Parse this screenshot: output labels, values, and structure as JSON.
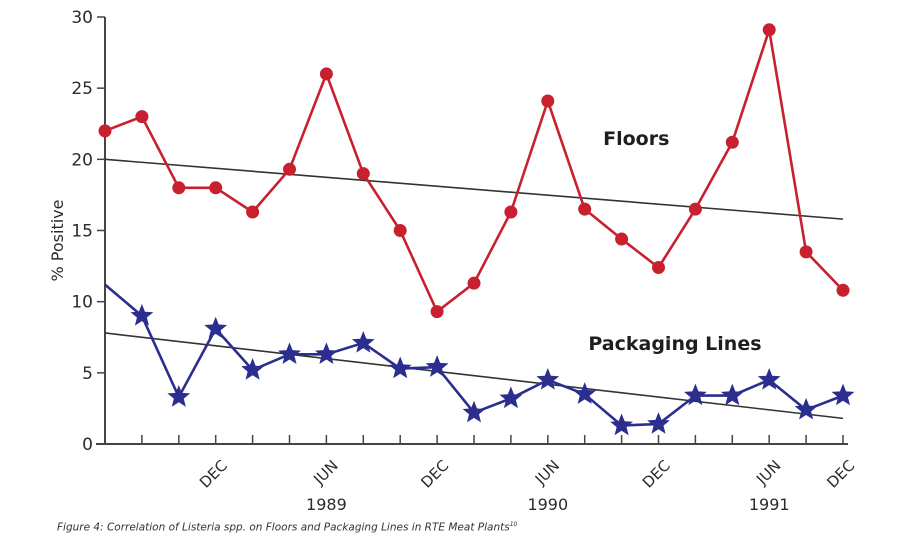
{
  "chart_data": {
    "type": "line",
    "title": "",
    "xlabel": "",
    "ylabel": "% Positive",
    "ylim": [
      0,
      30
    ],
    "yticks": [
      0,
      5,
      10,
      15,
      20,
      25,
      30
    ],
    "x_index_range": [
      0,
      20
    ],
    "x_month_labels": [
      {
        "index": 3,
        "label": "DEC"
      },
      {
        "index": 6,
        "label": "JUN"
      },
      {
        "index": 9,
        "label": "DEC"
      },
      {
        "index": 12,
        "label": "JUN"
      },
      {
        "index": 15,
        "label": "DEC"
      },
      {
        "index": 18,
        "label": "JUN"
      },
      {
        "index": 20,
        "label": "DEC"
      }
    ],
    "x_year_labels": [
      {
        "index": 6,
        "label": "1989"
      },
      {
        "index": 12,
        "label": "1990"
      },
      {
        "index": 18,
        "label": "1991"
      }
    ],
    "grid": false,
    "series": [
      {
        "name": "Floors",
        "color": "#c8202e",
        "marker": "circle",
        "x": [
          0,
          1,
          2,
          3,
          4,
          5,
          6,
          7,
          8,
          9,
          10,
          11,
          12,
          13,
          14,
          15,
          16,
          17,
          18,
          19,
          20
        ],
        "values": [
          22,
          23,
          18,
          18,
          16.3,
          19.3,
          26,
          19,
          15,
          9.3,
          11.3,
          16.3,
          24.1,
          16.5,
          14.4,
          12.4,
          16.5,
          21.2,
          29.1,
          13.5,
          10.8
        ],
        "label_position": {
          "index": 13.5,
          "value": 21
        }
      },
      {
        "name": "Packaging Lines",
        "color": "#2b2e8f",
        "marker": "star",
        "line_start": {
          "x": 0,
          "value": 11.2
        },
        "x": [
          1,
          2,
          3,
          4,
          5,
          6,
          7,
          8,
          9,
          10,
          11,
          12,
          13,
          14,
          15,
          16,
          17,
          18,
          19,
          20
        ],
        "values": [
          9.0,
          3.3,
          8.1,
          5.2,
          6.3,
          6.3,
          7.1,
          5.3,
          5.4,
          2.2,
          3.2,
          4.5,
          3.5,
          1.3,
          1.4,
          3.4,
          3.4,
          4.5,
          2.4,
          3.4
        ],
        "label_position": {
          "index": 13.1,
          "value": 6.6
        }
      }
    ],
    "trendlines": [
      {
        "name": "Floors trend",
        "color": "#333333",
        "from": {
          "x": 0,
          "value": 20.0
        },
        "to": {
          "x": 20,
          "value": 15.8
        }
      },
      {
        "name": "Packaging Lines trend",
        "color": "#333333",
        "from": {
          "x": 0,
          "value": 7.8
        },
        "to": {
          "x": 20,
          "value": 1.8
        }
      }
    ]
  },
  "caption": {
    "text": "Figure 4: Correlation of Listeria spp. on Floors and Packaging Lines in RTE Meat Plants",
    "superscript": "10"
  }
}
